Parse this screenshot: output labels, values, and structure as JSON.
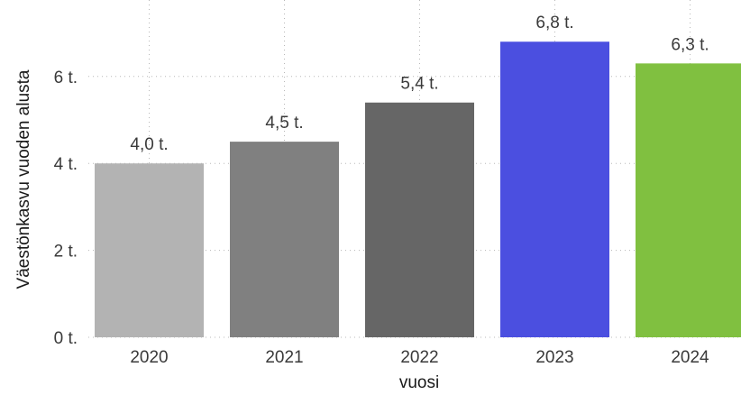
{
  "chart_data": {
    "type": "bar",
    "title": "",
    "xlabel": "vuosi",
    "ylabel": "Väestönkasvu vuoden alusta",
    "categories": [
      "2020",
      "2021",
      "2022",
      "2023",
      "2024"
    ],
    "values": [
      4.0,
      4.5,
      5.4,
      6.8,
      6.3
    ],
    "data_labels": [
      "4,0 t.",
      "4,5 t.",
      "5,4 t.",
      "6,8 t.",
      "6,3 t."
    ],
    "bar_colors": [
      "#b3b3b3",
      "#808080",
      "#666666",
      "#4b4fe0",
      "#80c040"
    ],
    "yticks": [
      0,
      2,
      4,
      6
    ],
    "ytick_labels": [
      "0 t.",
      "2 t.",
      "4 t.",
      "6 t."
    ],
    "ylim": [
      0,
      7.5
    ],
    "grid": true,
    "legend": "none"
  }
}
